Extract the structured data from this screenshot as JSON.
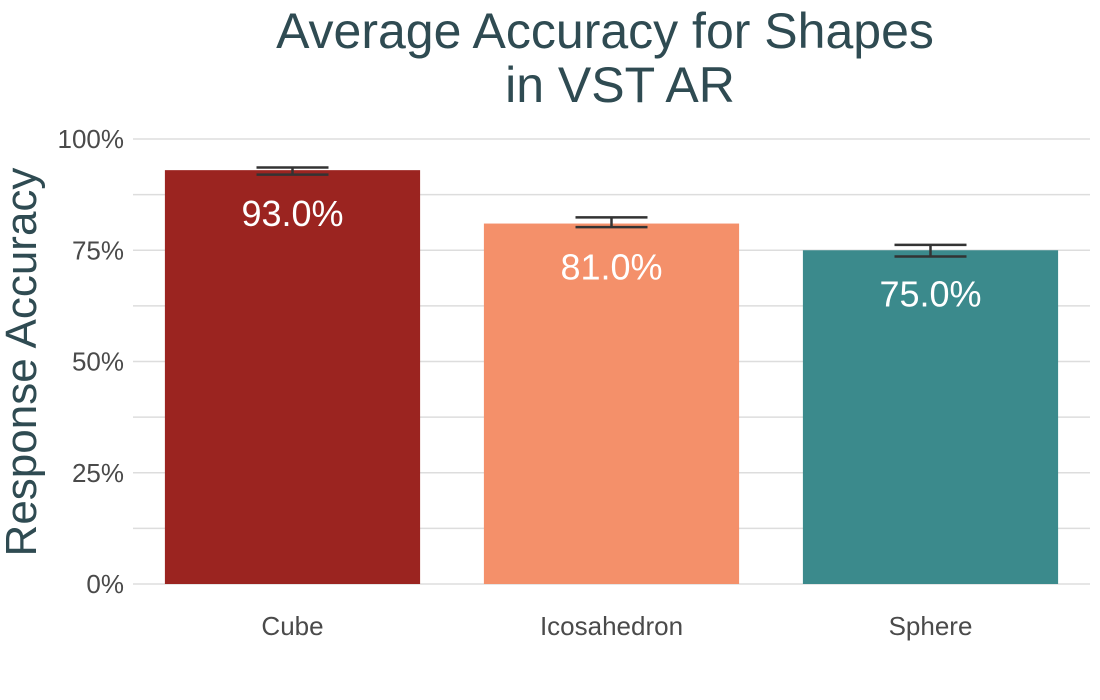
{
  "chart_data": {
    "type": "bar",
    "title_lines": [
      "Average Accuracy for Shapes",
      "in VST AR"
    ],
    "xlabel": "",
    "ylabel": "Response Accuracy",
    "ylim": [
      0,
      100
    ],
    "yticks": [
      0,
      25,
      50,
      75,
      100
    ],
    "ytick_labels": [
      "0%",
      "25%",
      "50%",
      "75%",
      "100%"
    ],
    "grid": true,
    "categories": [
      "Cube",
      "Icosahedron",
      "Sphere"
    ],
    "values": [
      93.0,
      81.0,
      75.0
    ],
    "error_low": [
      92.0,
      80.2,
      73.6
    ],
    "error_high": [
      93.6,
      82.4,
      76.2
    ],
    "data_labels": [
      "93.0%",
      "81.0%",
      "75.0%"
    ],
    "colors": [
      "#9b2420",
      "#f4906a",
      "#3b8a8c"
    ],
    "grid_color": "#dddddd",
    "errorbar_color": "#333333"
  }
}
